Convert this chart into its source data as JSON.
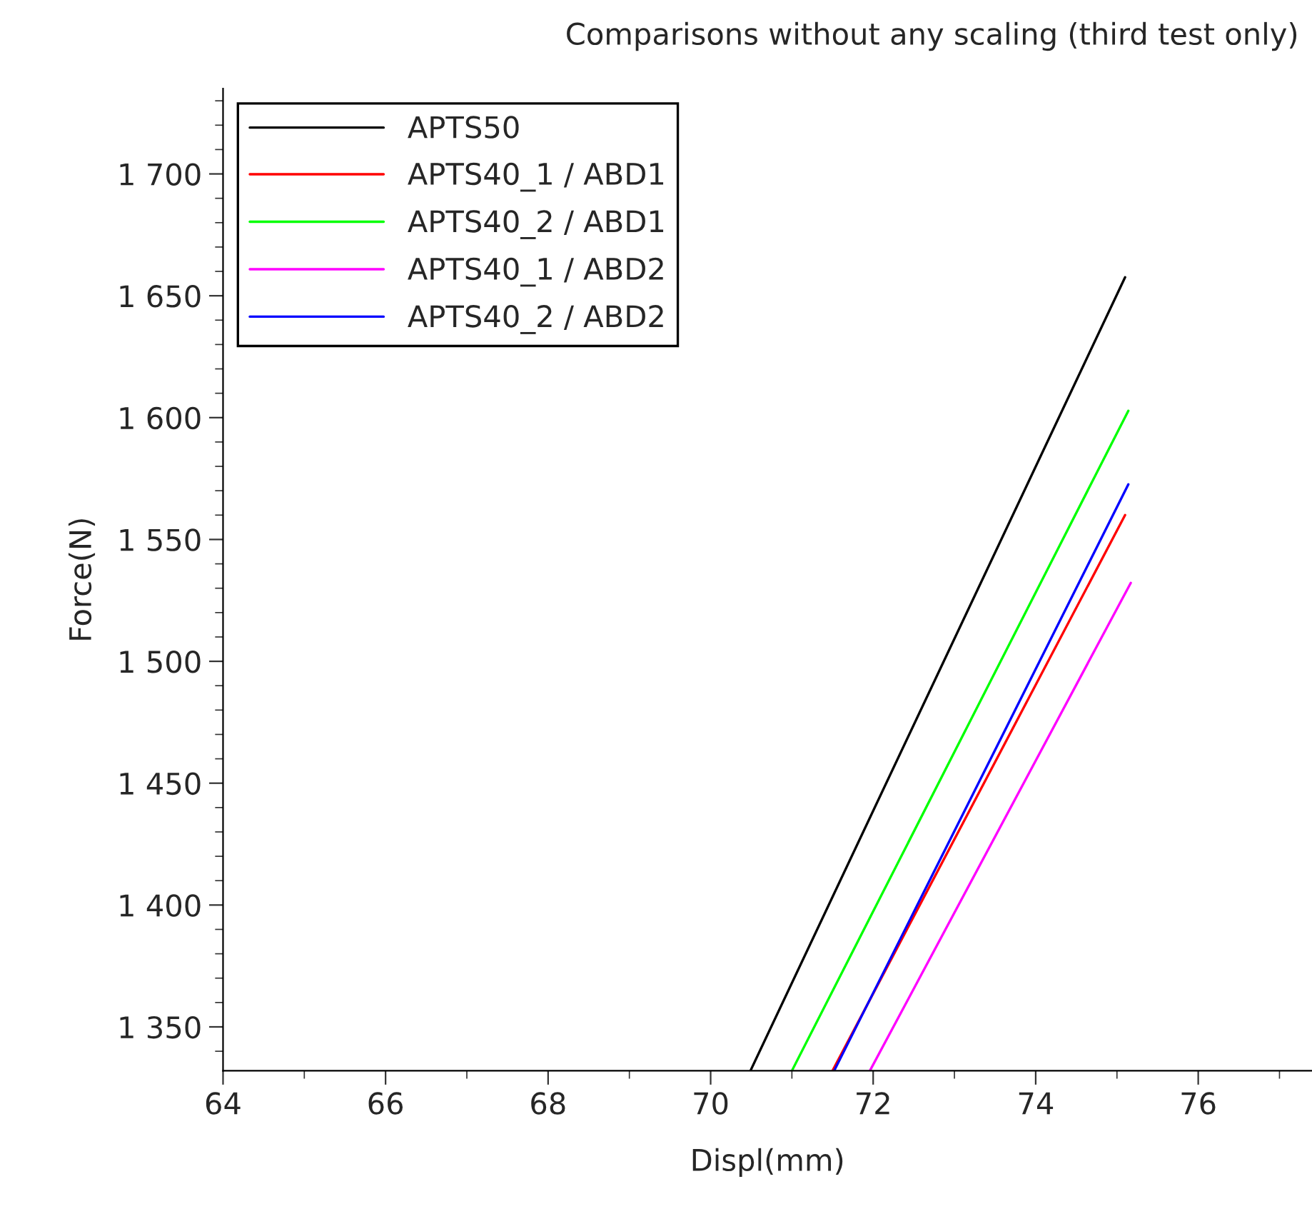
{
  "chart_data": {
    "type": "line",
    "title": "Comparisons without any scaling (third test only)",
    "xlabel": "Displ(mm)",
    "ylabel": "Force(N)",
    "xlim": [
      64,
      77.4
    ],
    "ylim": [
      1332,
      1735
    ],
    "xticks": [
      64,
      66,
      68,
      70,
      72,
      74,
      76
    ],
    "yticks": [
      {
        "value": 1350,
        "label": "1 350"
      },
      {
        "value": 1400,
        "label": "1 400"
      },
      {
        "value": 1450,
        "label": "1 450"
      },
      {
        "value": 1500,
        "label": "1 500"
      },
      {
        "value": 1550,
        "label": "1 550"
      },
      {
        "value": 1600,
        "label": "1 600"
      },
      {
        "value": 1650,
        "label": "1 650"
      },
      {
        "value": 1700,
        "label": "1 700"
      }
    ],
    "grid": false,
    "legend": "top left",
    "marker": "none",
    "line_style": "solid",
    "series": [
      {
        "name": "APTS50",
        "color": "#000000",
        "x": [
          70.49,
          75.1
        ],
        "values": [
          1332,
          1657.6
        ]
      },
      {
        "name": "APTS40_1 / ABD1",
        "color": "#ff0000",
        "x": [
          71.5,
          75.1
        ],
        "values": [
          1332,
          1560
        ]
      },
      {
        "name": "APTS40_2 / ABD1",
        "color": "#00ff00",
        "x": [
          71.0,
          75.14
        ],
        "values": [
          1332,
          1602.8
        ]
      },
      {
        "name": "APTS40_1 / ABD2",
        "color": "#ff00ff",
        "x": [
          71.96,
          75.17
        ],
        "values": [
          1332,
          1532.2
        ]
      },
      {
        "name": "APTS40_2 / ABD2",
        "color": "#0000ff",
        "x": [
          71.52,
          75.14
        ],
        "values": [
          1332,
          1572.6
        ]
      }
    ]
  }
}
